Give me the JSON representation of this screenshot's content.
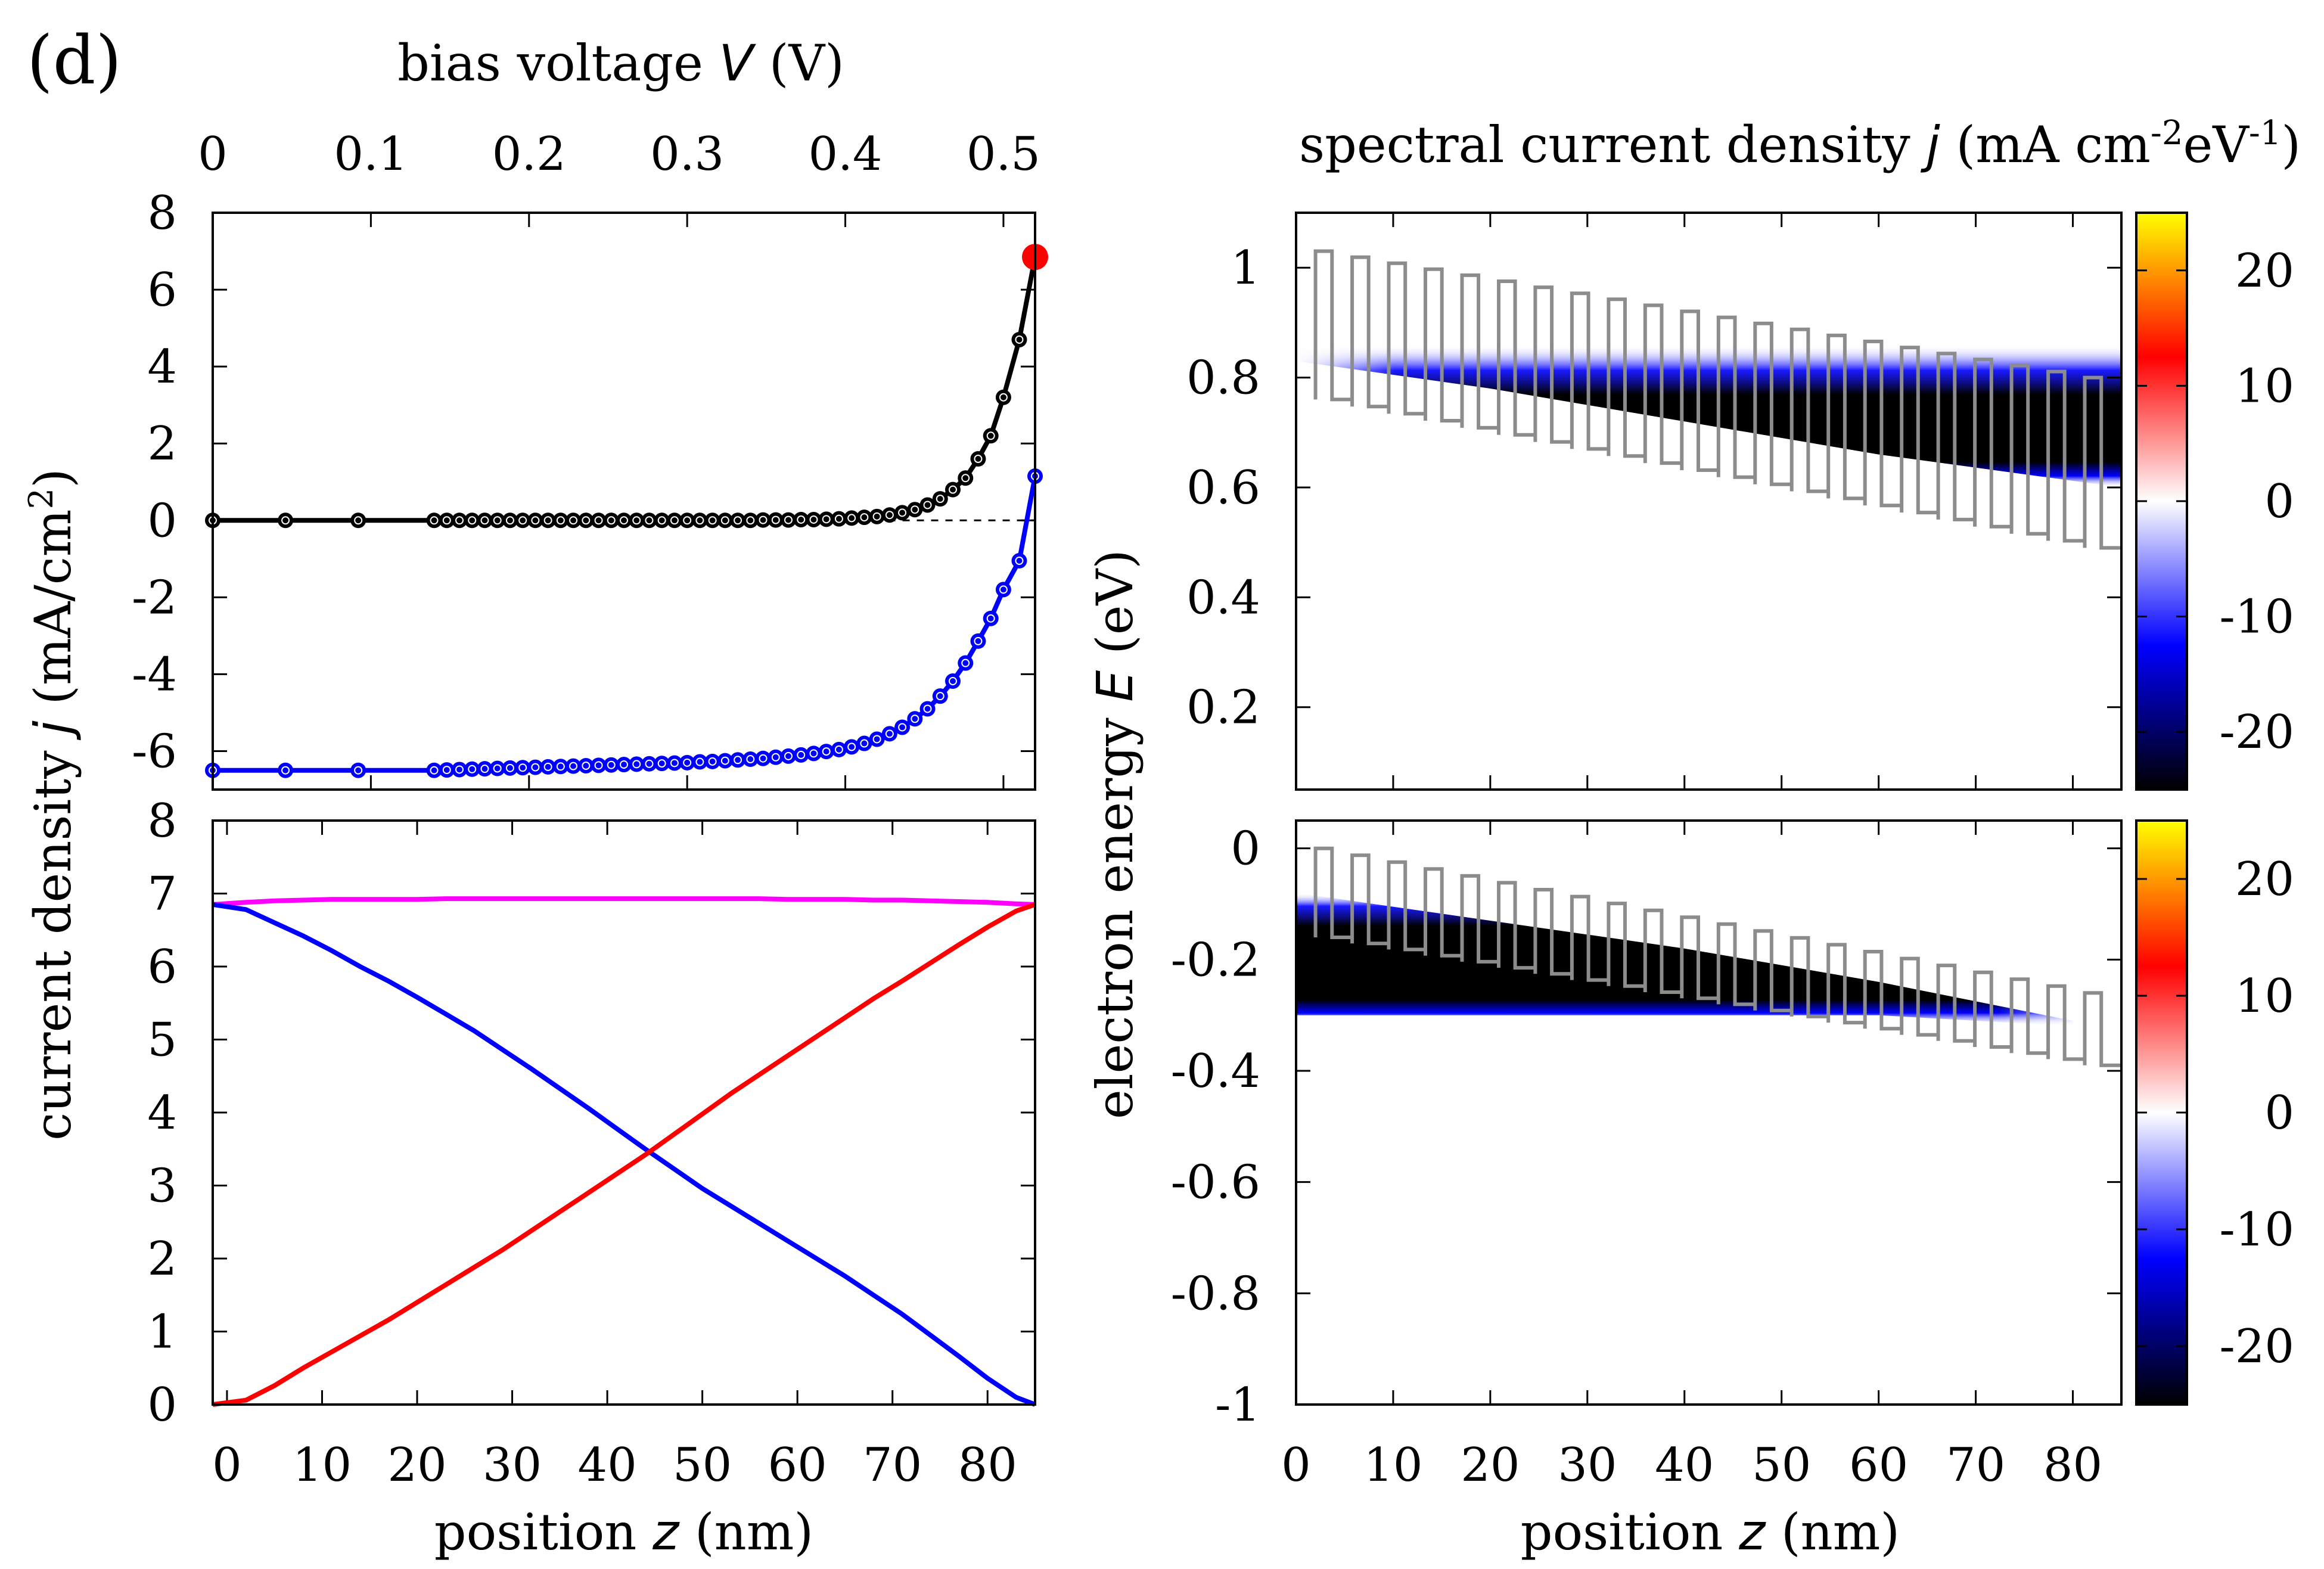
{
  "panel_label": "(d)",
  "colors": {
    "iv_dark": "#000000",
    "iv_light": "#0000ff",
    "marker": "#ff0000",
    "total": "#ff00ff",
    "electron": "#0000ff",
    "hole": "#ff0000",
    "potential": "#8c8c8c"
  },
  "chart_data": [
    {
      "id": "iv",
      "type": "line",
      "title_parts": [
        "bias voltage ",
        "V",
        " (V)"
      ],
      "xlim": [
        0,
        0.52
      ],
      "ylim": [
        -7,
        8
      ],
      "xticks": [
        0,
        0.1,
        0.2,
        0.3,
        0.4,
        0.5
      ],
      "xtick_labels": [
        "0",
        "0.1",
        "0.2",
        "0.3",
        "0.4",
        "0.5"
      ],
      "yticks": [
        -6,
        -4,
        -2,
        0,
        2,
        4,
        6,
        8
      ],
      "ytick_labels": [
        "-6",
        "-4",
        "-2",
        "0",
        "2",
        "4",
        "6",
        "8"
      ],
      "ylabel_parts": [
        "current density ",
        "j",
        " (mA/cm",
        "2",
        ")"
      ],
      "zero_line": true,
      "highlight_point": {
        "x": 0.52,
        "y": 6.85
      },
      "x": [
        0,
        0.046,
        0.092,
        0.14,
        0.148,
        0.156,
        0.164,
        0.172,
        0.18,
        0.188,
        0.196,
        0.204,
        0.212,
        0.22,
        0.228,
        0.236,
        0.244,
        0.252,
        0.26,
        0.268,
        0.276,
        0.284,
        0.292,
        0.3,
        0.308,
        0.316,
        0.324,
        0.332,
        0.34,
        0.348,
        0.356,
        0.364,
        0.372,
        0.38,
        0.388,
        0.396,
        0.404,
        0.412,
        0.42,
        0.428,
        0.436,
        0.444,
        0.452,
        0.46,
        0.468,
        0.476,
        0.484,
        0.492,
        0.5,
        0.51,
        0.52
      ],
      "series": [
        {
          "name": "dark",
          "values": [
            0,
            0,
            0,
            0,
            0,
            0,
            0,
            0,
            0,
            0,
            0,
            0,
            0,
            0,
            0,
            0,
            0,
            0,
            0,
            0,
            0,
            0,
            0,
            0,
            0,
            0,
            0,
            0,
            0,
            0.01,
            0.01,
            0.01,
            0.02,
            0.02,
            0.03,
            0.04,
            0.06,
            0.08,
            0.1,
            0.14,
            0.2,
            0.28,
            0.4,
            0.56,
            0.8,
            1.1,
            1.6,
            2.2,
            3.2,
            4.7,
            6.85
          ]
        },
        {
          "name": "illuminated",
          "values": [
            -6.5,
            -6.5,
            -6.5,
            -6.5,
            -6.49,
            -6.48,
            -6.47,
            -6.46,
            -6.45,
            -6.44,
            -6.43,
            -6.42,
            -6.41,
            -6.4,
            -6.39,
            -6.38,
            -6.37,
            -6.36,
            -6.35,
            -6.34,
            -6.33,
            -6.32,
            -6.31,
            -6.3,
            -6.28,
            -6.27,
            -6.25,
            -6.23,
            -6.21,
            -6.19,
            -6.16,
            -6.13,
            -6.1,
            -6.06,
            -6.01,
            -5.96,
            -5.89,
            -5.8,
            -5.69,
            -5.55,
            -5.38,
            -5.16,
            -4.9,
            -4.57,
            -4.18,
            -3.71,
            -3.14,
            -2.55,
            -1.8,
            -1.05,
            1.15
          ]
        }
      ]
    },
    {
      "id": "profile",
      "type": "line",
      "xlim": [
        -1.5,
        85
      ],
      "ylim": [
        0,
        8
      ],
      "xticks": [
        0,
        10,
        20,
        30,
        40,
        50,
        60,
        70,
        80
      ],
      "xtick_labels": [
        "0",
        "10",
        "20",
        "30",
        "40",
        "50",
        "60",
        "70",
        "80"
      ],
      "yticks": [
        0,
        1,
        2,
        3,
        4,
        5,
        6,
        7,
        8
      ],
      "ytick_labels": [
        "0",
        "1",
        "2",
        "3",
        "4",
        "5",
        "6",
        "7",
        "8"
      ],
      "xlabel_parts": [
        "position ",
        "z",
        " (nm)"
      ],
      "x": [
        -1.5,
        2,
        5,
        8,
        11,
        14,
        17,
        20,
        23,
        26,
        29,
        32,
        35,
        38,
        41,
        44,
        47,
        50,
        53,
        56,
        59,
        62,
        65,
        68,
        71,
        74,
        77,
        80,
        83,
        85
      ],
      "series": [
        {
          "name": "total",
          "values": [
            6.85,
            6.88,
            6.9,
            6.91,
            6.92,
            6.92,
            6.92,
            6.92,
            6.93,
            6.93,
            6.93,
            6.93,
            6.93,
            6.93,
            6.93,
            6.93,
            6.93,
            6.93,
            6.93,
            6.93,
            6.92,
            6.92,
            6.92,
            6.91,
            6.91,
            6.9,
            6.89,
            6.88,
            6.86,
            6.85
          ]
        },
        {
          "name": "electron",
          "values": [
            6.85,
            6.78,
            6.6,
            6.42,
            6.22,
            6.0,
            5.8,
            5.58,
            5.35,
            5.12,
            4.86,
            4.6,
            4.33,
            4.06,
            3.78,
            3.5,
            3.23,
            2.96,
            2.72,
            2.48,
            2.24,
            2.0,
            1.76,
            1.5,
            1.24,
            0.95,
            0.66,
            0.36,
            0.1,
            0.0
          ]
        },
        {
          "name": "hole",
          "values": [
            0.0,
            0.06,
            0.26,
            0.5,
            0.72,
            0.94,
            1.16,
            1.4,
            1.64,
            1.88,
            2.12,
            2.38,
            2.64,
            2.9,
            3.16,
            3.42,
            3.7,
            3.98,
            4.26,
            4.52,
            4.78,
            5.04,
            5.3,
            5.56,
            5.8,
            6.05,
            6.3,
            6.54,
            6.76,
            6.85
          ]
        }
      ]
    },
    {
      "id": "spectral-electron",
      "type": "heatmap",
      "title_parts": [
        "spectral current density ",
        "j",
        " (mA cm",
        "-2",
        "eV",
        "-1",
        ")"
      ],
      "xlim": [
        0,
        85
      ],
      "ylim": [
        0.05,
        1.1
      ],
      "yticks": [
        0.2,
        0.4,
        0.6,
        0.8,
        1.0
      ],
      "ytick_labels": [
        "0.2",
        "0.4",
        "0.6",
        "0.8",
        "1"
      ],
      "band": {
        "z": [
          0,
          20,
          40,
          60,
          85
        ],
        "upper": [
          0.86,
          0.86,
          0.86,
          0.86,
          0.86
        ],
        "lower": [
          0.83,
          0.78,
          0.72,
          0.66,
          0.6
        ]
      },
      "potential": {
        "periods": 22,
        "left_bottom": 0.76,
        "left_top": 1.03,
        "right_bottom": 0.49,
        "right_top": 0.8
      },
      "colorbar": {
        "range": [
          -25,
          25
        ],
        "ticks": [
          20,
          10,
          0,
          -10,
          -20
        ],
        "tick_labels": [
          "20",
          "10",
          "0",
          "-10",
          "-20"
        ]
      }
    },
    {
      "id": "spectral-hole",
      "type": "heatmap",
      "xlim": [
        0,
        85
      ],
      "ylim": [
        -1.0,
        0.05
      ],
      "yticks": [
        0,
        -0.2,
        -0.4,
        -0.6,
        -0.8,
        -1.0
      ],
      "ytick_labels": [
        "0",
        "-0.2",
        "-0.4",
        "-0.6",
        "-0.8",
        "-1"
      ],
      "xticks": [
        0,
        10,
        20,
        30,
        40,
        50,
        60,
        70,
        80
      ],
      "xtick_labels": [
        "0",
        "10",
        "20",
        "30",
        "40",
        "50",
        "60",
        "70",
        "80"
      ],
      "xlabel_parts": [
        "position ",
        "z",
        " (nm)"
      ],
      "band": {
        "z": [
          0,
          20,
          40,
          60,
          80
        ],
        "upper": [
          -0.08,
          -0.13,
          -0.18,
          -0.24,
          -0.31
        ],
        "lower": [
          -0.3,
          -0.3,
          -0.3,
          -0.3,
          -0.32
        ]
      },
      "potential": {
        "periods": 22,
        "left_top": 0.0,
        "left_bottom": -0.16,
        "right_top": -0.26,
        "right_bottom": -0.39
      },
      "colorbar": {
        "range": [
          -25,
          25
        ],
        "ticks": [
          20,
          10,
          0,
          -10,
          -20
        ],
        "tick_labels": [
          "20",
          "10",
          "0",
          "-10",
          "-20"
        ]
      }
    }
  ],
  "shared_ylabel_right_parts": [
    "electron energy ",
    "E",
    " (eV)"
  ]
}
